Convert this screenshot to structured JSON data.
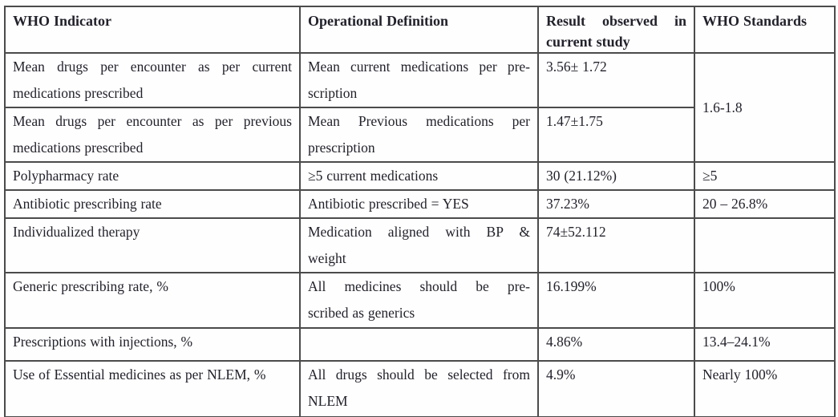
{
  "table": {
    "header": {
      "who_indicator": "WHO Indicator",
      "operational_definition": "Operational Definition",
      "result_observed": [
        "Result observed in",
        "current study"
      ],
      "who_standards": "WHO Standards"
    },
    "rows": [
      {
        "indicator": [
          "Mean drugs per encounter as per current",
          "medications prescribed"
        ],
        "definition": [
          "Mean current medications per pre-",
          "scription"
        ],
        "result": "3.56± 1.72",
        "standard": "1.6-1.8"
      },
      {
        "indicator": [
          "Mean drugs per encounter as per previous",
          "medications prescribed"
        ],
        "definition": [
          "Mean Previous medications per",
          "prescription"
        ],
        "result": "1.47±1.75"
      },
      {
        "indicator": "Polypharmacy rate",
        "definition": "≥5 current medications",
        "result": "30 (21.12%)",
        "standard": "≥5"
      },
      {
        "indicator": "Antibiotic prescribing rate",
        "definition": "Antibiotic prescribed = YES",
        "result": "37.23%",
        "standard": "20 – 26.8%"
      },
      {
        "indicator": "Individualized therapy",
        "definition": [
          "Medication aligned with BP &",
          "weight"
        ],
        "result": "74±52.112",
        "standard": ""
      },
      {
        "indicator": "Generic prescribing rate, %",
        "definition": [
          "All medicines should be pre-",
          "scribed as generics"
        ],
        "result": "16.199%",
        "standard": "100%"
      },
      {
        "indicator": "Prescriptions with injections, %",
        "definition": "",
        "result": "4.86%",
        "standard": "13.4–24.1%"
      },
      {
        "indicator": "Use of Essential medicines as per NLEM, %",
        "definition": [
          "All drugs should be selected from",
          "NLEM"
        ],
        "result": "4.9%",
        "standard": "Nearly 100%"
      }
    ]
  }
}
